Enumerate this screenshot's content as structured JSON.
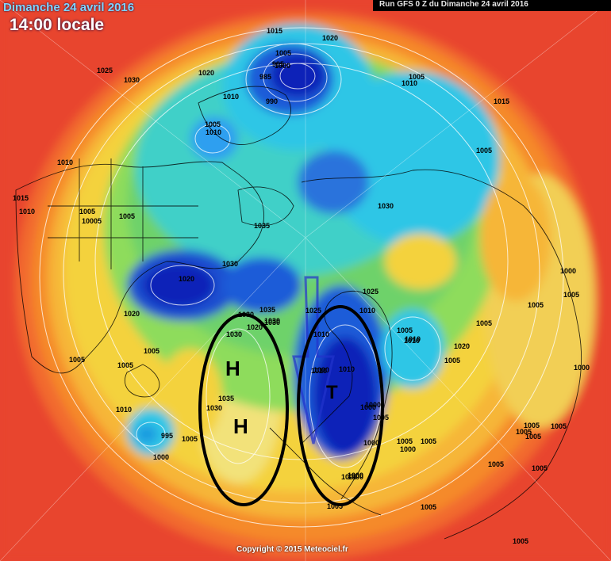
{
  "header": {
    "date": "Dimanche 24 avril 2016",
    "time": "14:00 locale",
    "run": "Run GFS 0 Z du Dimanche 24 avril 2016"
  },
  "footer": {
    "copyright": "Copyright © 2015 Meteociel.fr"
  },
  "colors": {
    "background": "#e8442e",
    "orange": "#f58a2c",
    "yellow": "#f4d23c",
    "light_yellow": "#f2e27a",
    "green": "#6ed26a",
    "cyan": "#2fc6e6",
    "blue": "#1a5bd8",
    "dark_blue": "#1020b8",
    "annotation": "#000000"
  },
  "annotations": {
    "high_1": "H",
    "high_2": "H",
    "trough": "T"
  },
  "isobar_labels": [
    "1015",
    "1020",
    "1005",
    "995",
    "985",
    "990",
    "1000",
    "1025",
    "1030",
    "1020",
    "1010",
    "1010",
    "1015",
    "1005",
    "1010",
    "1005",
    "1010",
    "1015",
    "1010",
    "1005",
    "10005",
    "1005",
    "1035",
    "1030",
    "1020",
    "1030",
    "1020",
    "1035",
    "1030",
    "1020",
    "1025",
    "1025",
    "1030",
    "1005",
    "1005",
    "1010",
    "1000",
    "1030",
    "1035",
    "1030",
    "1010",
    "1010",
    "1005",
    "1010",
    "995",
    "1005",
    "1000",
    "1000",
    "1000",
    "1005",
    "1000",
    "1005",
    "1020",
    "1010",
    "1000",
    "1000",
    "1000",
    "1005",
    "1005",
    "1005",
    "1005",
    "1005",
    "1005",
    "1005",
    "1005",
    "1005",
    "1010",
    "1010",
    "1000",
    "1000",
    "1005",
    "1005",
    "1005",
    "1005",
    "1005",
    "1000",
    "1005",
    "1030",
    "1005",
    "1010"
  ]
}
